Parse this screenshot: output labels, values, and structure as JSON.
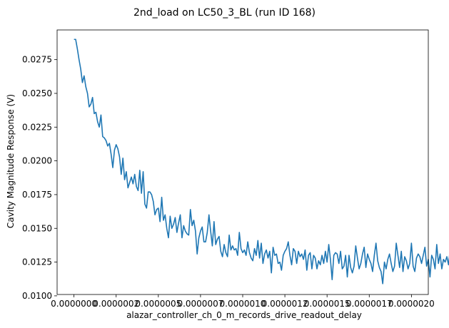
{
  "chart_data": {
    "type": "line",
    "title": "2nd_load on LC50_3_BL (run ID 168)",
    "xlabel": "alazar_controller_ch_0_m_records_drive_readout_delay",
    "ylabel": "Cavity Magnitude Response (V)",
    "xlim": [
      -1e-07,
      2.1e-06
    ],
    "ylim": [
      0.0101,
      0.0297
    ],
    "x_ticks": [
      0,
      2.5e-07,
      5e-07,
      7.5e-07,
      1e-06,
      1.25e-06,
      1.5e-06,
      1.75e-06,
      2e-06
    ],
    "x_tick_labels": [
      "0.0000000",
      "0.0000002",
      "0.0000005",
      "0.0000007",
      "0.0000010",
      "0.0000012",
      "0.0000015",
      "0.0000017",
      "0.0000020"
    ],
    "y_ticks": [
      0.01,
      0.0125,
      0.015,
      0.0175,
      0.02,
      0.0225,
      0.025,
      0.0275
    ],
    "y_tick_labels": [
      "0.0100",
      "0.0125",
      "0.0150",
      "0.0175",
      "0.0200",
      "0.0225",
      "0.0250",
      "0.0275"
    ],
    "grid": false,
    "series": [
      {
        "color": "#1f77b4",
        "x_start": 0,
        "x_step": 1e-08,
        "values": [
          0.029,
          0.029,
          0.0283,
          0.0275,
          0.0268,
          0.0258,
          0.0263,
          0.0255,
          0.025,
          0.024,
          0.0242,
          0.0247,
          0.0235,
          0.0236,
          0.0229,
          0.0225,
          0.0234,
          0.0218,
          0.0217,
          0.0215,
          0.0211,
          0.0213,
          0.0205,
          0.0195,
          0.0208,
          0.0212,
          0.0209,
          0.0203,
          0.019,
          0.0202,
          0.0186,
          0.0192,
          0.018,
          0.0184,
          0.0188,
          0.0183,
          0.019,
          0.0181,
          0.0178,
          0.0193,
          0.0176,
          0.0192,
          0.0168,
          0.0165,
          0.0177,
          0.0177,
          0.0175,
          0.017,
          0.016,
          0.0164,
          0.0165,
          0.0155,
          0.0173,
          0.0156,
          0.016,
          0.015,
          0.0143,
          0.0159,
          0.015,
          0.0153,
          0.0158,
          0.0147,
          0.0154,
          0.016,
          0.0143,
          0.0152,
          0.0148,
          0.0146,
          0.0145,
          0.0164,
          0.0152,
          0.0156,
          0.0148,
          0.0131,
          0.0143,
          0.0148,
          0.0151,
          0.014,
          0.014,
          0.0147,
          0.016,
          0.0148,
          0.0137,
          0.0155,
          0.0138,
          0.0142,
          0.0144,
          0.0133,
          0.0129,
          0.0138,
          0.0132,
          0.0129,
          0.0145,
          0.0134,
          0.0137,
          0.0134,
          0.0135,
          0.013,
          0.0147,
          0.0135,
          0.0132,
          0.0134,
          0.013,
          0.014,
          0.0132,
          0.0128,
          0.0126,
          0.0135,
          0.013,
          0.0141,
          0.0128,
          0.0139,
          0.0124,
          0.0131,
          0.0134,
          0.0128,
          0.0133,
          0.0117,
          0.0136,
          0.013,
          0.0131,
          0.0124,
          0.0125,
          0.0119,
          0.013,
          0.0133,
          0.0135,
          0.014,
          0.013,
          0.0123,
          0.0135,
          0.0133,
          0.0124,
          0.0133,
          0.0129,
          0.0131,
          0.0127,
          0.0134,
          0.0119,
          0.013,
          0.0132,
          0.012,
          0.013,
          0.0128,
          0.012,
          0.0126,
          0.0123,
          0.013,
          0.0124,
          0.0133,
          0.0125,
          0.0138,
          0.0127,
          0.0112,
          0.013,
          0.0132,
          0.0131,
          0.0124,
          0.0133,
          0.012,
          0.0122,
          0.013,
          0.0114,
          0.013,
          0.0121,
          0.0117,
          0.0122,
          0.0137,
          0.0128,
          0.012,
          0.0124,
          0.0131,
          0.0136,
          0.0121,
          0.0131,
          0.0127,
          0.0124,
          0.0118,
          0.013,
          0.0139,
          0.0126,
          0.0121,
          0.0118,
          0.0109,
          0.0125,
          0.012,
          0.0127,
          0.0131,
          0.0124,
          0.0118,
          0.0122,
          0.0139,
          0.013,
          0.0121,
          0.0133,
          0.0118,
          0.0129,
          0.0126,
          0.012,
          0.0124,
          0.0139,
          0.0122,
          0.0118,
          0.0128,
          0.0131,
          0.0129,
          0.0124,
          0.013,
          0.0136,
          0.0122,
          0.0127,
          0.0114,
          0.013,
          0.0127,
          0.012,
          0.0138,
          0.0124,
          0.0131,
          0.012,
          0.0127,
          0.0125,
          0.0129,
          0.0123,
          0.0135,
          0.0124,
          0.0133,
          0.0115,
          0.0131,
          0.0133,
          0.0123,
          0.0138,
          0.0117,
          0.0114,
          0.0124,
          0.0121,
          0.0125,
          0.0129,
          0.013,
          0.0129,
          0.0128,
          0.0134
        ]
      }
    ]
  }
}
